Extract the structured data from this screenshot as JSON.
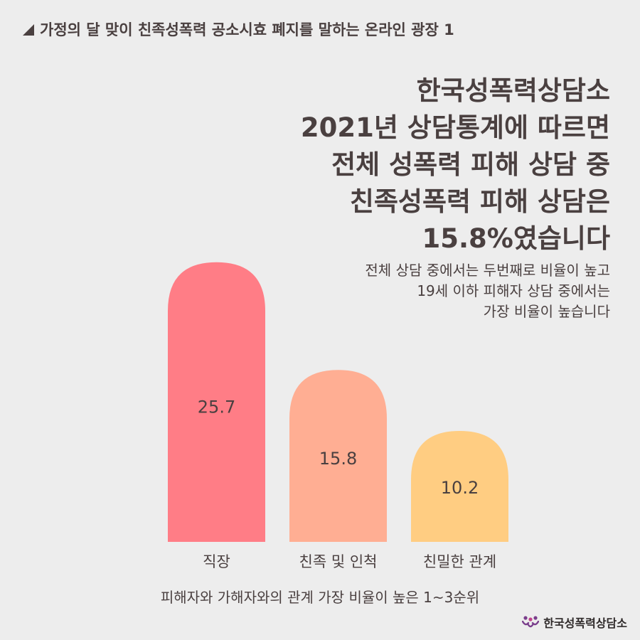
{
  "header": {
    "title": "가정의 달 맞이 친족성폭력 공소시효 폐지를 말하는 온라인 광장 1"
  },
  "headline": {
    "lines": [
      "한국성폭력상담소",
      "2021년 상담통계에 따르면",
      "전체 성폭력 피해 상담 중",
      "친족성폭력 피해 상담은",
      "15.8%였습니다"
    ]
  },
  "subtext": {
    "lines": [
      "전체 상담 중에서는 두번째로 비율이 높고",
      "19세 이하 피해자 상담 중에서는",
      "가장 비율이 높습니다"
    ]
  },
  "chart_data": {
    "type": "bar",
    "categories": [
      "직장",
      "친족 및 인척",
      "친밀한 관계"
    ],
    "values": [
      25.7,
      15.8,
      10.2
    ],
    "value_labels": [
      "25.7",
      "15.8",
      "10.2"
    ],
    "colors": [
      "#ff7d86",
      "#ffae93",
      "#ffcd82"
    ],
    "title": "",
    "xlabel": "",
    "ylabel": "",
    "grid": false
  },
  "caption": "피해자와 가해자와의 관계 가장 비율이 높은 1~3순위",
  "logo": {
    "text": "한국성폭력상담소",
    "icon": "people-icon"
  }
}
